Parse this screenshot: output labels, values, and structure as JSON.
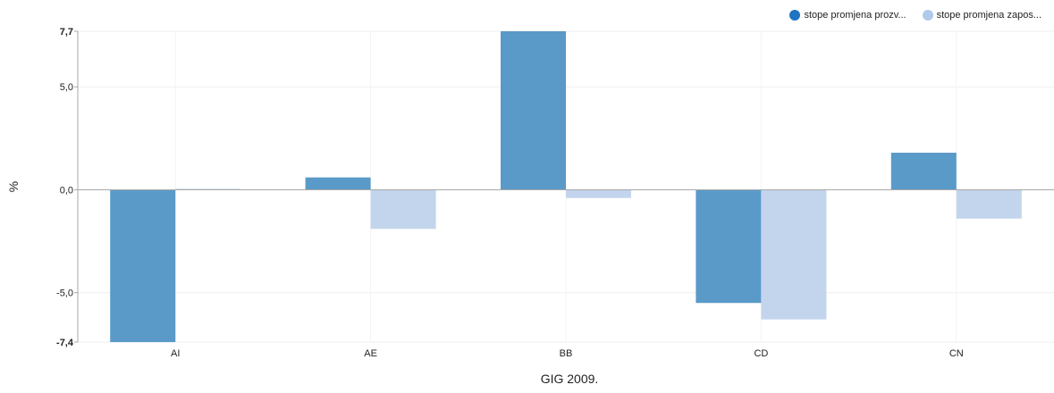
{
  "chart_data": {
    "type": "bar",
    "categories": [
      "AI",
      "AE",
      "BB",
      "CD",
      "CN"
    ],
    "series": [
      {
        "name": "stope promjena prozv...",
        "color": "#5a9ac8",
        "values": [
          -7.4,
          0.6,
          7.7,
          -5.5,
          1.8
        ]
      },
      {
        "name": "stope promjena zapos...",
        "color": "#c3d5ed",
        "values": [
          0.05,
          -1.9,
          -0.4,
          -6.3,
          -1.4
        ]
      }
    ],
    "xlabel": "GIG 2009.",
    "ylabel": "%",
    "ylim": [
      -7.4,
      7.7
    ],
    "yticks": [
      {
        "value": 7.7,
        "label": "7,7",
        "bold": true
      },
      {
        "value": 5.0,
        "label": "5,0",
        "bold": false
      },
      {
        "value": 0.0,
        "label": "0,0",
        "bold": false
      },
      {
        "value": -5.0,
        "label": "-5,0",
        "bold": false
      },
      {
        "value": -7.4,
        "label": "-7,4",
        "bold": true
      }
    ],
    "grid": true,
    "legend_position": "top-right"
  }
}
